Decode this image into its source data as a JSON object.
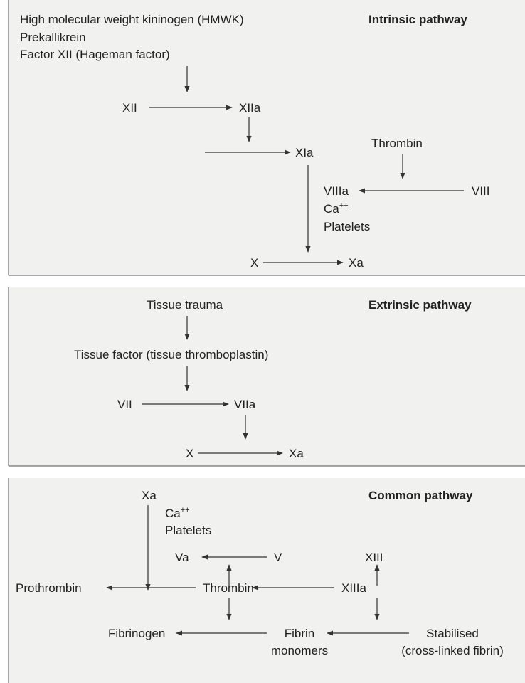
{
  "panels": [
    {
      "title": "Intrinsic pathway",
      "labels": [
        "High molecular weight kininogen (HMWK)",
        "Prekallikrein",
        "Factor XII (Hageman factor)",
        "XII",
        "XIIa",
        "XIa",
        "Thrombin",
        "VIIIa",
        "VIII",
        {
          "text": "Ca",
          "sup": "++"
        },
        "Platelets",
        "X",
        "Xa"
      ]
    },
    {
      "title": "Extrinsic pathway",
      "labels": [
        "Tissue trauma",
        "Tissue factor (tissue thromboplastin)",
        "VII",
        "VIIa",
        "X",
        "Xa"
      ]
    },
    {
      "title": "Common pathway",
      "labels": [
        "Xa",
        {
          "text": "Ca",
          "sup": "++"
        },
        "Platelets",
        "Va",
        "V",
        "XIII",
        "Prothrombin",
        "Thrombin",
        "XIIIa",
        "Fibrinogen",
        "Fibrin",
        "monomers",
        "Stabilised",
        "(cross-linked fibrin)"
      ]
    }
  ]
}
